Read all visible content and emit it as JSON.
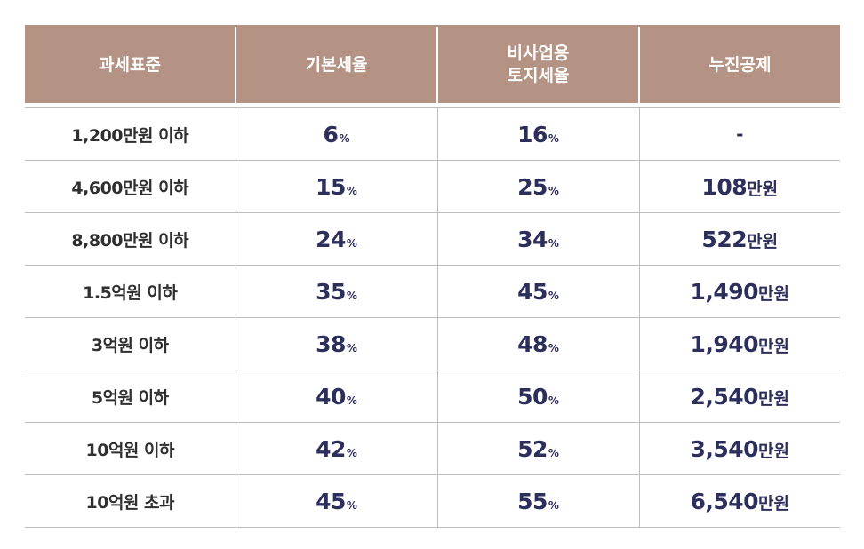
{
  "header": {
    "col1": "과세표준",
    "col2": "기본세율",
    "col3_line1": "비사업용",
    "col3_line2": "토지세율",
    "col4": "누진공제"
  },
  "rows": [
    {
      "bracket": "1,200만원 이하",
      "basic": "6",
      "basic_unit": "%",
      "nonbiz": "16",
      "nonbiz_unit": "%",
      "deduction": "-",
      "deduction_unit": ""
    },
    {
      "bracket": "4,600만원 이하",
      "basic": "15",
      "basic_unit": "%",
      "nonbiz": "25",
      "nonbiz_unit": "%",
      "deduction": "108",
      "deduction_unit": "만원"
    },
    {
      "bracket": "8,800만원 이하",
      "basic": "24",
      "basic_unit": "%",
      "nonbiz": "34",
      "nonbiz_unit": "%",
      "deduction": "522",
      "deduction_unit": "만원"
    },
    {
      "bracket": "1.5억원 이하",
      "basic": "35",
      "basic_unit": "%",
      "nonbiz": "45",
      "nonbiz_unit": "%",
      "deduction": "1,490",
      "deduction_unit": "만원"
    },
    {
      "bracket": "3억원 이하",
      "basic": "38",
      "basic_unit": "%",
      "nonbiz": "48",
      "nonbiz_unit": "%",
      "deduction": "1,940",
      "deduction_unit": "만원"
    },
    {
      "bracket": "5억원 이하",
      "basic": "40",
      "basic_unit": "%",
      "nonbiz": "50",
      "nonbiz_unit": "%",
      "deduction": "2,540",
      "deduction_unit": "만원"
    },
    {
      "bracket": "10억원 이하",
      "basic": "42",
      "basic_unit": "%",
      "nonbiz": "52",
      "nonbiz_unit": "%",
      "deduction": "3,540",
      "deduction_unit": "만원"
    },
    {
      "bracket": "10억원 초과",
      "basic": "45",
      "basic_unit": "%",
      "nonbiz": "55",
      "nonbiz_unit": "%",
      "deduction": "6,540",
      "deduction_unit": "만원"
    }
  ],
  "colors": {
    "header_bg": "#b49384",
    "header_text": "#ffffff",
    "value_text": "#2c2e5c",
    "label_text": "#2f2f2f",
    "rule": "#bdbdbd"
  }
}
